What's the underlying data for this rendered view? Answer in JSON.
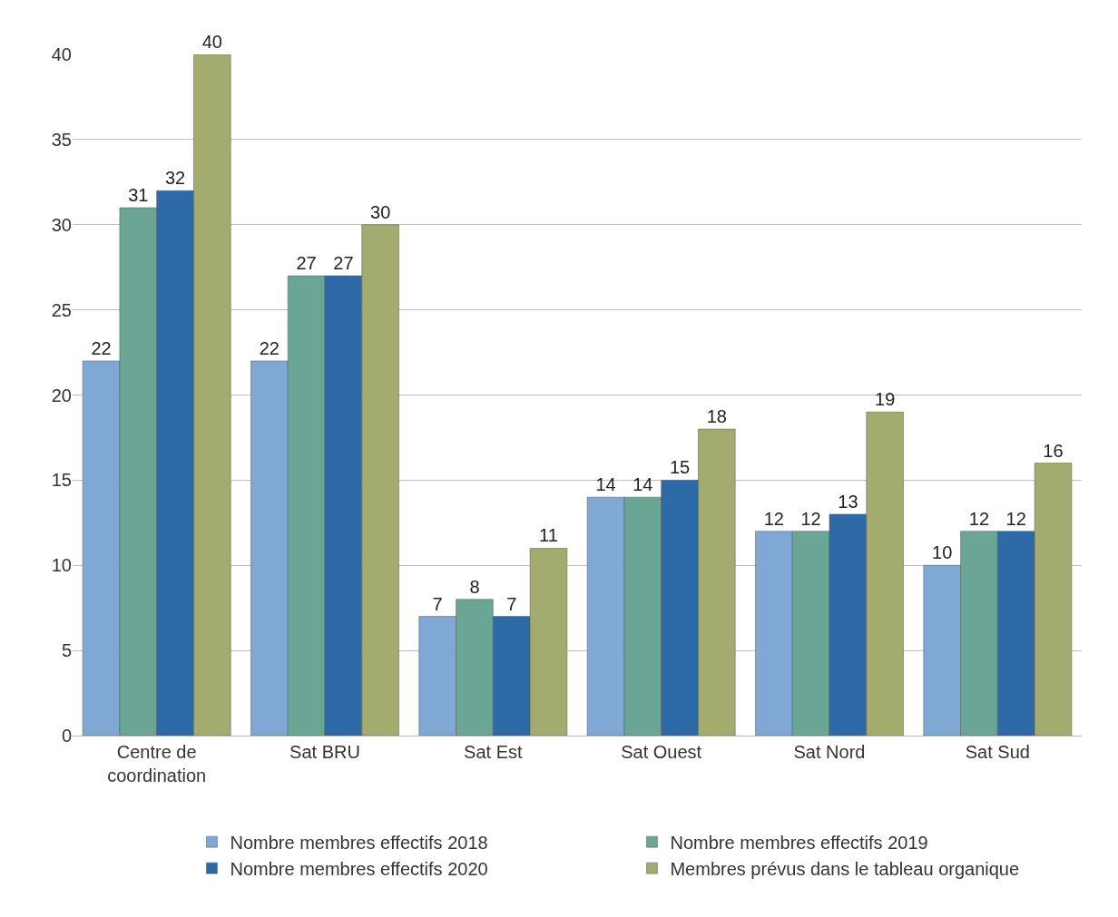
{
  "chart_data": {
    "type": "bar",
    "categories": [
      "Centre de\ncoordination",
      "Sat BRU",
      "Sat Est",
      "Sat Ouest",
      "Sat Nord",
      "Sat Sud"
    ],
    "series": [
      {
        "name": "Nombre membres effectifs 2018",
        "color": "#7fa9d4",
        "values": [
          22,
          22,
          7,
          14,
          12,
          10
        ]
      },
      {
        "name": "Nombre membres effectifs 2019",
        "color": "#6aa596",
        "values": [
          31,
          27,
          8,
          14,
          12,
          12
        ]
      },
      {
        "name": "Nombre membres effectifs 2020",
        "color": "#2e6aa6",
        "values": [
          32,
          27,
          7,
          15,
          13,
          12
        ]
      },
      {
        "name": "Membres prévus dans le tableau organique",
        "color": "#a3ab6e",
        "values": [
          40,
          30,
          11,
          18,
          19,
          16
        ]
      }
    ],
    "ylim": [
      0,
      40
    ],
    "yticks": [
      0,
      5,
      10,
      15,
      20,
      25,
      30,
      35,
      40
    ],
    "grid": "y",
    "legend": "bottom",
    "data_labels": true
  }
}
